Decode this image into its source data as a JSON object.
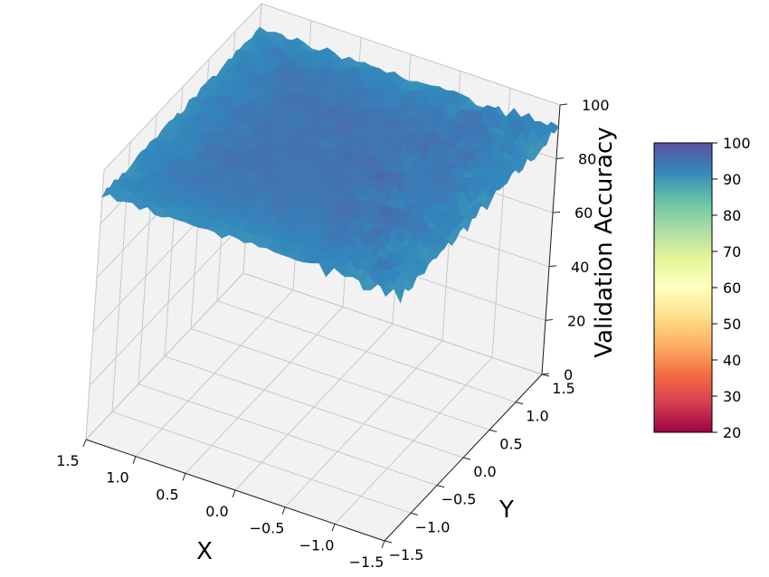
{
  "chart_data": {
    "type": "surface",
    "x": {
      "label": "X",
      "ticks": [
        "−1.5",
        "−1.0",
        "−0.5",
        "0.0",
        "0.5",
        "1.0",
        "1.5"
      ],
      "range": [
        -1.5,
        1.5
      ]
    },
    "y": {
      "label": "Y",
      "ticks": [
        "−1.5",
        "−1.0",
        "−0.5",
        "0.0",
        "0.5",
        "1.0",
        "1.5"
      ],
      "range": [
        -1.5,
        1.5
      ]
    },
    "z": {
      "label": "Validation Accuracy",
      "ticks": [
        "0",
        "20",
        "40",
        "60",
        "80",
        "100"
      ],
      "range": [
        0,
        100
      ]
    },
    "surface": {
      "description_level": "flat plateau with noisy edges",
      "z_min": 88,
      "z_max": 98,
      "z_typical": 95,
      "colormap": "Spectral"
    },
    "colorbar": {
      "ticks": [
        "100",
        "90",
        "80",
        "70",
        "60",
        "50",
        "40",
        "30",
        "20"
      ],
      "range": [
        20,
        100
      ],
      "colors": [
        "#9e0142",
        "#d53e4f",
        "#f46d43",
        "#fdae61",
        "#fee08b",
        "#ffffbf",
        "#e6f598",
        "#abdda4",
        "#66c2a5",
        "#3288bd",
        "#5e4fa2"
      ]
    },
    "grid": true,
    "pane_color": "#f2f2f2"
  }
}
